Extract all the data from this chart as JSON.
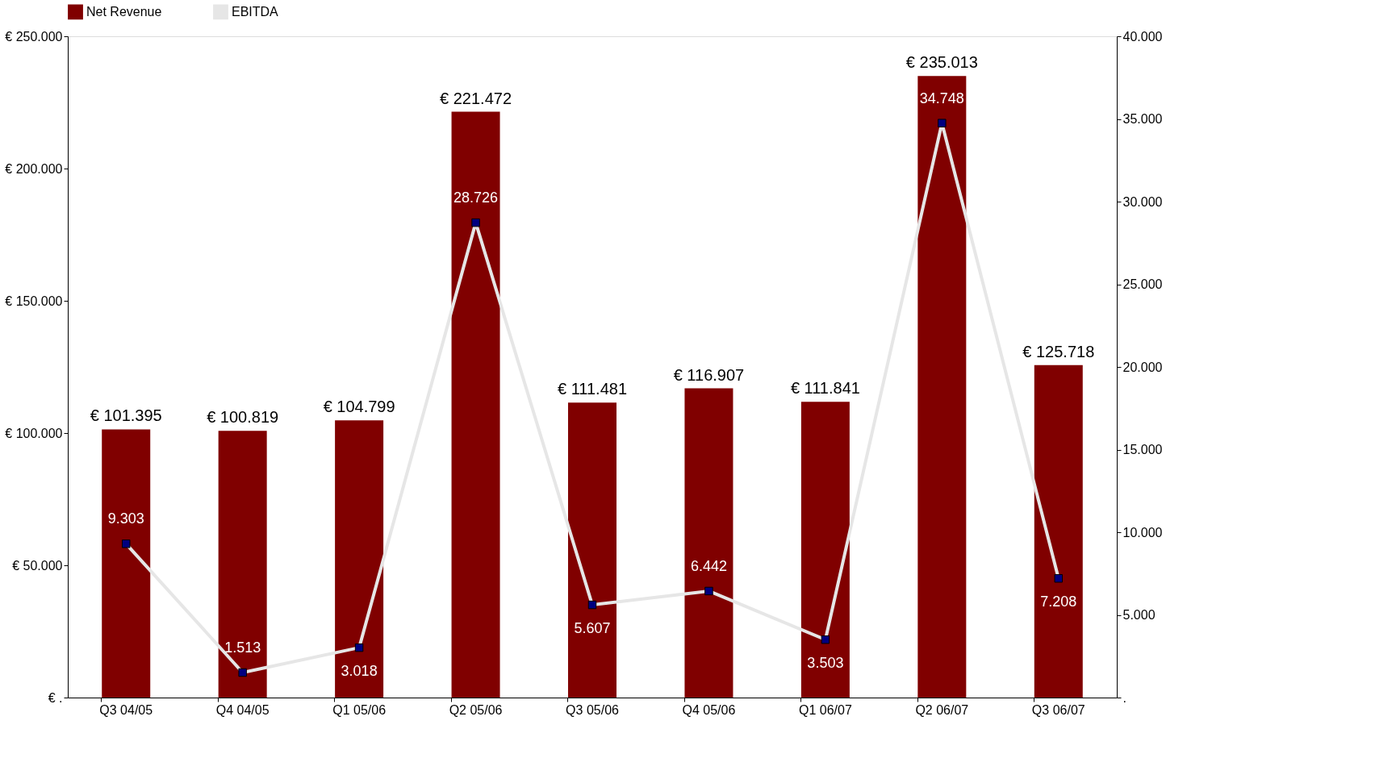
{
  "chart_data": {
    "type": "bar",
    "categories": [
      "Q3 04/05",
      "Q4 04/05",
      "Q1 05/06",
      "Q2 05/06",
      "Q3 05/06",
      "Q4 05/06",
      "Q1 06/07",
      "Q2 06/07",
      "Q3 06/07"
    ],
    "series": [
      {
        "name": "Net Revenue",
        "color": "#800000",
        "values": [
          101395,
          100819,
          104799,
          221472,
          111481,
          116907,
          111841,
          235013,
          125718
        ],
        "value_labels": [
          "€ 101.395",
          "€ 100.819",
          "€ 104.799",
          "€ 221.472",
          "€ 111.481",
          "€ 116.907",
          "€ 111.841",
          "€ 235.013",
          "€ 125.718"
        ]
      },
      {
        "name": "EBITDA",
        "type": "line",
        "axis": "y2",
        "color": "#e6e6e6",
        "marker": "square",
        "line_style": "solid",
        "values": [
          9303,
          1513,
          3018,
          28726,
          5607,
          6442,
          3503,
          34748,
          7208
        ],
        "value_labels": [
          "9.303",
          "1.513",
          "3.018",
          "28.726",
          "5.607",
          "6.442",
          "3.503",
          "34.748",
          "7.208"
        ]
      }
    ],
    "ylim": [
      0,
      250000
    ],
    "yticks": [
      {
        "value": 0,
        "label": "€ ."
      },
      {
        "value": 50000,
        "label": "€ 50.000"
      },
      {
        "value": 100000,
        "label": "€ 100.000"
      },
      {
        "value": 150000,
        "label": "€ 150.000"
      },
      {
        "value": 200000,
        "label": "€ 200.000"
      },
      {
        "value": 250000,
        "label": "€ 250.000"
      }
    ],
    "y2lim": [
      0,
      40000
    ],
    "y2ticks": [
      {
        "value": 0,
        "label": "."
      },
      {
        "value": 5000,
        "label": "5.000"
      },
      {
        "value": 10000,
        "label": "10.000"
      },
      {
        "value": 15000,
        "label": "15.000"
      },
      {
        "value": 20000,
        "label": "20.000"
      },
      {
        "value": 25000,
        "label": "25.000"
      },
      {
        "value": 30000,
        "label": "30.000"
      },
      {
        "value": 35000,
        "label": "35.000"
      },
      {
        "value": 40000,
        "label": "40.000"
      }
    ],
    "grid": false,
    "legend": "top"
  }
}
